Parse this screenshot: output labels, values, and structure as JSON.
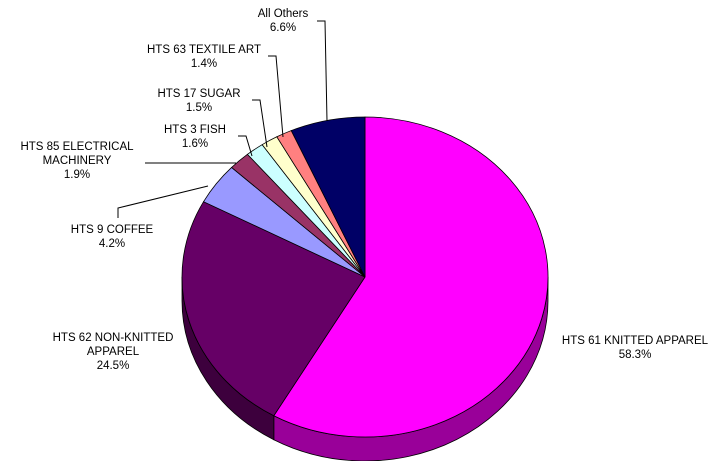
{
  "chart_data": {
    "type": "pie",
    "style": "3d",
    "title": "",
    "slices": [
      {
        "label_lines": [
          "HTS 61 KNITTED APPAREL"
        ],
        "value_text": "58.3%",
        "value": 58.3,
        "color": "#FF00FF",
        "side_color": "#990099"
      },
      {
        "label_lines": [
          "HTS 62 NON-KNITTED",
          "APPAREL"
        ],
        "value_text": "24.5%",
        "value": 24.5,
        "color": "#660066",
        "side_color": "#3D003D"
      },
      {
        "label_lines": [
          "HTS 9 COFFEE"
        ],
        "value_text": "4.2%",
        "value": 4.2,
        "color": "#9999FF",
        "side_color": "#5C5C99"
      },
      {
        "label_lines": [
          "HTS 85 ELECTRICAL",
          "MACHINERY"
        ],
        "value_text": "1.9%",
        "value": 1.9,
        "color": "#993366",
        "side_color": "#5C1F3D"
      },
      {
        "label_lines": [
          "HTS 3 FISH"
        ],
        "value_text": "1.6%",
        "value": 1.6,
        "color": "#CCFFFF",
        "side_color": "#7A9999"
      },
      {
        "label_lines": [
          "HTS 17 SUGAR"
        ],
        "value_text": "1.5%",
        "value": 1.5,
        "color": "#FFFFCC",
        "side_color": "#99997A"
      },
      {
        "label_lines": [
          "HTS 63 TEXTILE ART"
        ],
        "value_text": "1.4%",
        "value": 1.4,
        "color": "#FF8080",
        "side_color": "#994D4D"
      },
      {
        "label_lines": [
          "All Others"
        ],
        "value_text": "6.6%",
        "value": 6.6,
        "color": "#000066",
        "side_color": "#00003D"
      }
    ]
  }
}
